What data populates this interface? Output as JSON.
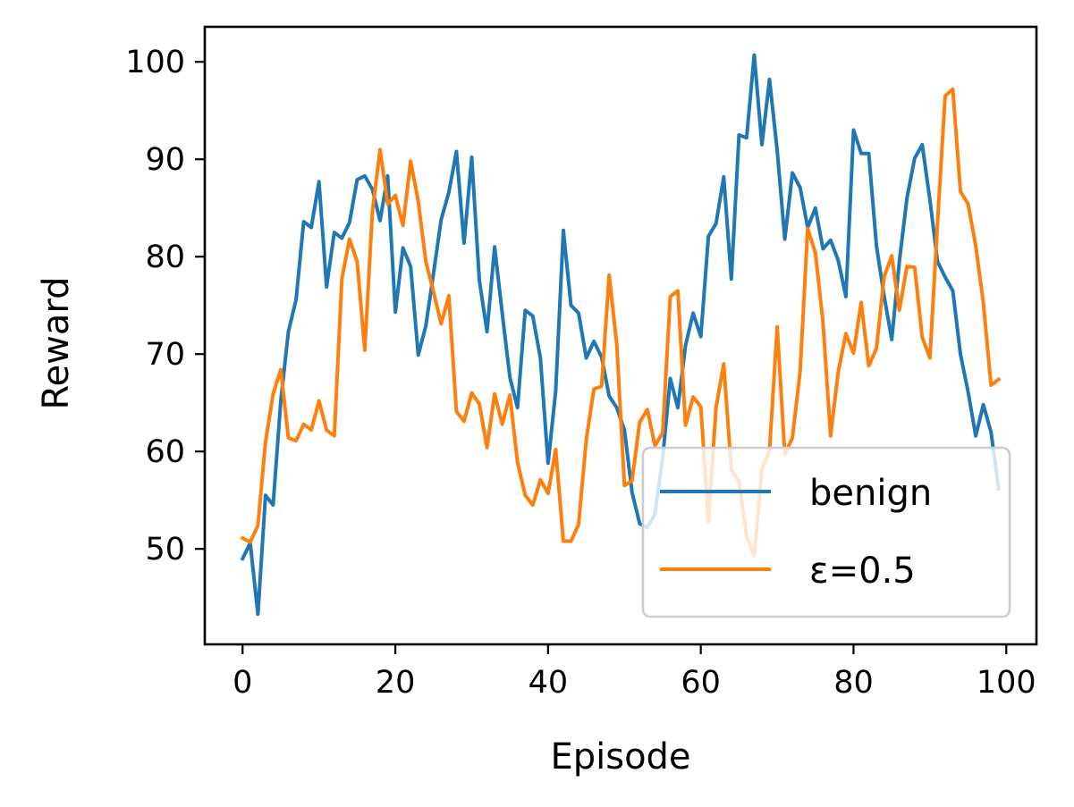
{
  "chart_data": {
    "type": "line",
    "xlabel": "Episode",
    "ylabel": "Reward",
    "xlim": [
      -4.95,
      103.95
    ],
    "ylim": [
      40.2,
      103.6
    ],
    "x_ticks": [
      0,
      20,
      40,
      60,
      80,
      100
    ],
    "y_ticks": [
      50,
      60,
      70,
      80,
      90,
      100
    ],
    "grid": false,
    "legend_position": "lower right",
    "series": [
      {
        "name": "benign",
        "color": "#1f77b4",
        "values": [
          49.0,
          50.6,
          43.3,
          55.5,
          54.5,
          65.2,
          72.3,
          75.6,
          83.6,
          83.0,
          87.7,
          76.9,
          82.5,
          81.9,
          83.5,
          87.9,
          88.3,
          86.9,
          83.7,
          88.3,
          74.3,
          80.9,
          79.0,
          69.9,
          72.9,
          78.3,
          83.8,
          86.6,
          90.8,
          81.4,
          90.2,
          77.6,
          72.3,
          81.0,
          74.2,
          67.6,
          64.5,
          74.5,
          73.9,
          69.6,
          58.8,
          66.2,
          82.7,
          75.0,
          74.2,
          69.6,
          71.3,
          69.7,
          65.7,
          64.5,
          62.2,
          55.8,
          52.6,
          52.2,
          53.6,
          59.3,
          67.5,
          64.5,
          70.9,
          74.2,
          71.8,
          82.1,
          83.4,
          88.2,
          77.7,
          92.5,
          92.2,
          100.7,
          91.5,
          98.2,
          90.9,
          81.8,
          88.6,
          87.1,
          83.0,
          85.0,
          80.8,
          81.7,
          79.6,
          75.9,
          93.0,
          90.6,
          90.6,
          81.1,
          76.0,
          71.5,
          79.5,
          86.0,
          90.1,
          91.5,
          85.8,
          79.5,
          77.9,
          76.5,
          70.0,
          66.1,
          61.6,
          64.8,
          62.0,
          56.2
        ]
      },
      {
        "name": "ε=0.5",
        "color": "#ff7f0e",
        "values": [
          51.1,
          50.7,
          52.4,
          61.0,
          65.9,
          68.4,
          61.4,
          61.1,
          62.8,
          62.2,
          65.2,
          62.2,
          61.6,
          77.7,
          81.8,
          79.5,
          70.4,
          84.7,
          91.0,
          85.4,
          86.3,
          83.2,
          89.8,
          85.7,
          79.5,
          76.4,
          73.1,
          76.0,
          64.1,
          63.1,
          66.0,
          64.9,
          60.4,
          65.9,
          62.8,
          65.8,
          58.9,
          55.5,
          54.5,
          57.1,
          55.7,
          60.2,
          50.8,
          50.8,
          52.5,
          61.2,
          66.4,
          66.7,
          78.1,
          71.0,
          56.5,
          57.0,
          63.0,
          64.3,
          60.6,
          61.9,
          75.9,
          76.5,
          62.7,
          65.6,
          64.6,
          52.8,
          64.5,
          69.0,
          58.1,
          56.9,
          51.3,
          49.3,
          58.2,
          60.1,
          72.8,
          59.7,
          61.4,
          68.2,
          82.9,
          80.4,
          73.3,
          61.6,
          68.2,
          72.1,
          70.1,
          75.3,
          68.8,
          70.6,
          77.9,
          80.1,
          74.5,
          79.0,
          78.9,
          71.7,
          69.6,
          83.5,
          96.5,
          97.2,
          86.7,
          85.4,
          81.1,
          75.3,
          66.8,
          67.4
        ]
      }
    ]
  }
}
